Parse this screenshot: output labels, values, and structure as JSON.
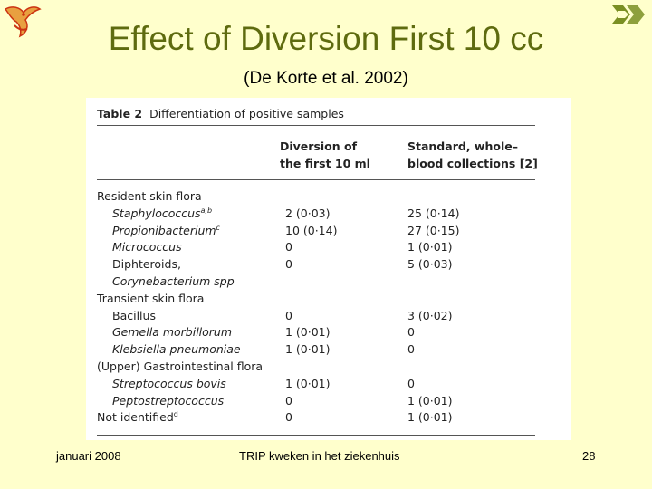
{
  "slide": {
    "title": "Effect of Diversion First 10 cc",
    "subtitle": "(De Korte et al. 2002)"
  },
  "table": {
    "caption_bold": "Table 2",
    "caption_text": "Differentiation of positive samples",
    "headers": {
      "col1_line1": "Diversion of",
      "col1_line2": "the first 10 ml",
      "col2_line1": "Standard, whole–",
      "col2_line2": "blood collections [2]"
    },
    "rows": [
      {
        "label": "Resident skin flora",
        "sup": "",
        "type": "cat",
        "italic": false,
        "c1": "",
        "c2": ""
      },
      {
        "label": "Staphylococcus",
        "sup": "a,b",
        "type": "sub",
        "italic": true,
        "c1": "2 (0·03)",
        "c2": "25 (0·14)"
      },
      {
        "label": "Propionibacterium",
        "sup": "c",
        "type": "sub",
        "italic": true,
        "c1": "10 (0·14)",
        "c2": "27 (0·15)"
      },
      {
        "label": "Micrococcus",
        "sup": "",
        "type": "sub",
        "italic": true,
        "c1": "0",
        "c2": "1 (0·01)"
      },
      {
        "label": "Diphteroids,",
        "sup": "",
        "type": "sub",
        "italic": false,
        "c1": "0",
        "c2": "5 (0·03)"
      },
      {
        "label": "Corynebacterium spp",
        "sup": "",
        "type": "sub",
        "italic": true,
        "c1": "",
        "c2": ""
      },
      {
        "label": "Transient skin flora",
        "sup": "",
        "type": "cat",
        "italic": false,
        "c1": "",
        "c2": ""
      },
      {
        "label": "Bacillus",
        "sup": "",
        "type": "sub",
        "italic": false,
        "c1": "0",
        "c2": "3 (0·02)"
      },
      {
        "label": "Gemella morbillorum",
        "sup": "",
        "type": "sub",
        "italic": true,
        "c1": "1 (0·01)",
        "c2": "0"
      },
      {
        "label": "Klebsiella pneumoniae",
        "sup": "",
        "type": "sub",
        "italic": true,
        "c1": "1 (0·01)",
        "c2": "0"
      },
      {
        "label": "(Upper) Gastrointestinal flora",
        "sup": "",
        "type": "cat",
        "italic": false,
        "c1": "",
        "c2": ""
      },
      {
        "label": "Streptococcus bovis",
        "sup": "",
        "type": "sub",
        "italic": true,
        "c1": "1 (0·01)",
        "c2": "0"
      },
      {
        "label": "Peptostreptococcus",
        "sup": "",
        "type": "sub",
        "italic": true,
        "c1": "0",
        "c2": "1 (0·01)"
      },
      {
        "label": "Not identified",
        "sup": "d",
        "type": "cat",
        "italic": false,
        "c1": "0",
        "c2": "1 (0·01)"
      }
    ]
  },
  "footer": {
    "date": "januari 2008",
    "center": "TRIP kweken in het ziekenhuis",
    "page": "28"
  },
  "icons": {
    "left_logo": "bird-logo-icon",
    "right_logo": "chevron-logo-icon"
  },
  "colors": {
    "background": "#FFFFCC",
    "title": "#5E6B0F",
    "logo": "#CC3311",
    "logo_right": "#7A8F22"
  }
}
